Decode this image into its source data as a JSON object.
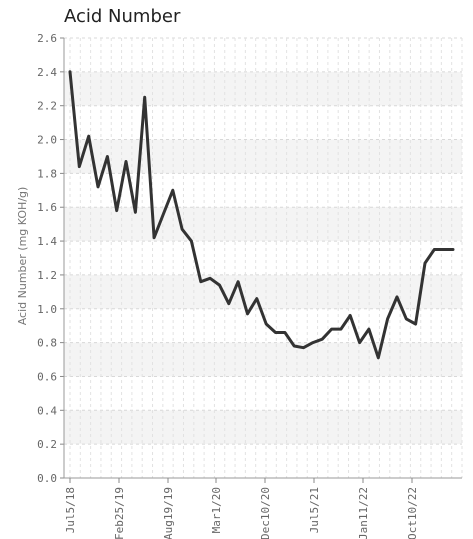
{
  "chart_data": {
    "type": "line",
    "title": "Acid Number",
    "ylabel": "Acid Number (mg KOH/g)",
    "xlabel": "",
    "ylim": [
      0,
      2.6
    ],
    "y_ticks": [
      "0.0",
      "0.2",
      "0.4",
      "0.6",
      "0.8",
      "1.0",
      "1.2",
      "1.4",
      "1.6",
      "1.8",
      "2.0",
      "2.2",
      "2.4",
      "2.6"
    ],
    "x_ticks": [
      "Jul5/18",
      "Feb25/19",
      "Aug19/19",
      "Mar1/20",
      "Dec10/20",
      "Jul5/21",
      "Jan11/22",
      "Oct10/22"
    ],
    "grid": true,
    "series_color": "#333333",
    "series": [
      {
        "x": [
          "Jul5/18",
          "Aug/18",
          "Oct/18",
          "Nov/18",
          "Jan/19",
          "Feb25/19",
          "Apr/19",
          "Jun/19",
          "Jul/19",
          "Aug19/19",
          "Sep/19",
          "Nov/19",
          "Dec/19",
          "Feb/20",
          "Mar1/20",
          "Apr/20",
          "May/20",
          "Jul/20",
          "Aug/20",
          "Oct/20",
          "Dec10/20",
          "Jan/21",
          "Feb/21",
          "Apr/21",
          "May/21",
          "Jul5/21",
          "Aug/21",
          "Sep/21",
          "Oct/21",
          "Nov/21",
          "Dec/21",
          "Jan11/22",
          "Feb/22",
          "Apr/22",
          "May/22",
          "Jul/22",
          "Aug/22",
          "Oct10/22",
          "Nov/22",
          "Jan/23",
          "Feb/23",
          "Mar/23"
        ],
        "values": [
          2.4,
          1.84,
          2.02,
          1.72,
          1.9,
          1.58,
          1.87,
          1.57,
          2.25,
          1.42,
          1.56,
          1.7,
          1.47,
          1.4,
          1.16,
          1.18,
          1.14,
          1.03,
          1.16,
          0.97,
          1.06,
          0.91,
          0.86,
          0.86,
          0.78,
          0.77,
          0.8,
          0.82,
          0.88,
          0.88,
          0.96,
          0.8,
          0.88,
          0.71,
          0.94,
          1.07,
          0.94,
          0.91,
          1.27,
          1.35,
          1.35,
          1.35
        ]
      }
    ]
  }
}
